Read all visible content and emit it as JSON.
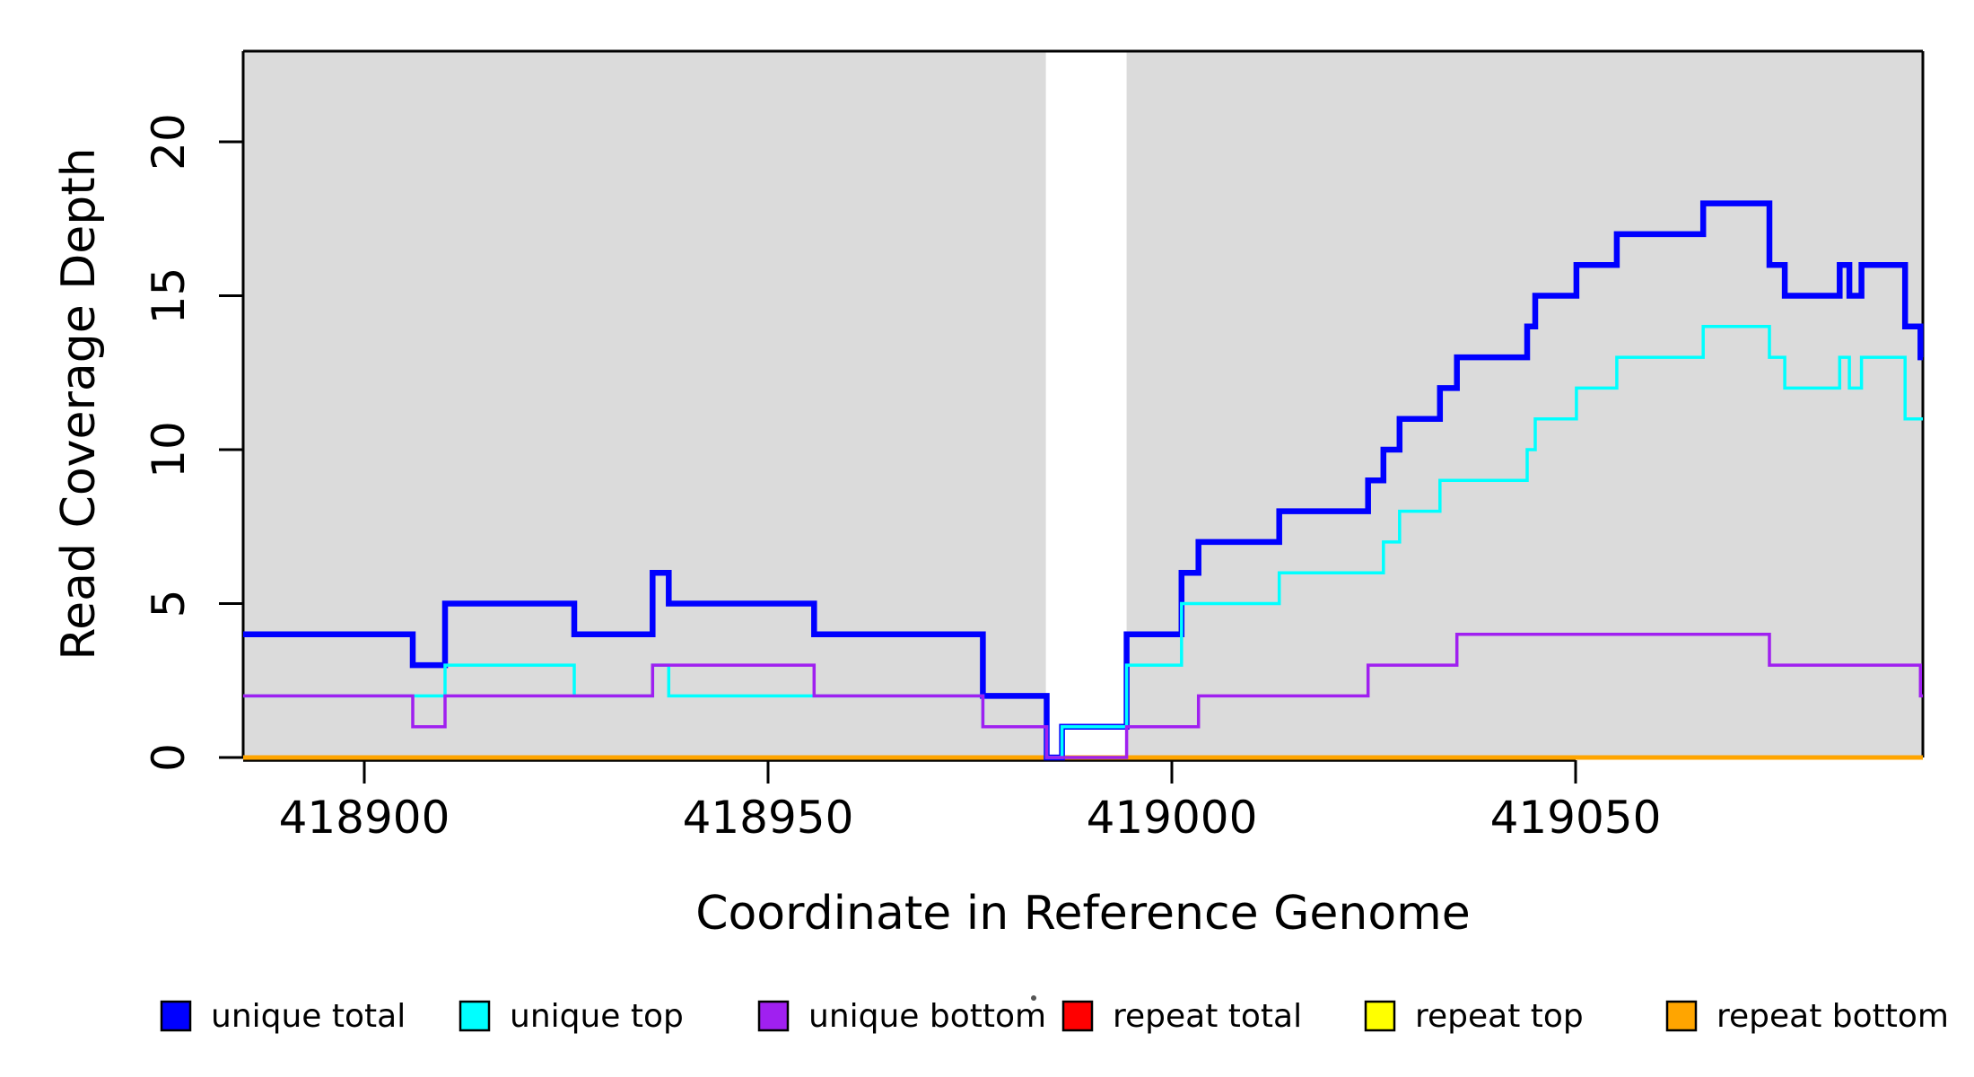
{
  "figure": {
    "background": "#ffffff",
    "plot_background_shaded": "#DBDBDB"
  },
  "chart_data": {
    "type": "line",
    "subtype": "step-coverage-plot",
    "title": "",
    "xlabel": "Coordinate in Reference Genome",
    "ylabel": "Read Coverage Depth",
    "xlim": [
      418885,
      419093
    ],
    "ylim": [
      0,
      22.9
    ],
    "grid": false,
    "x_ticks": [
      418900,
      418950,
      419000,
      419050
    ],
    "x_tick_labels": [
      "418900",
      "418950",
      "419000",
      "419050"
    ],
    "y_ticks": [
      0,
      5,
      10,
      15,
      20
    ],
    "y_tick_labels": [
      "0",
      "5",
      "10",
      "15",
      "20"
    ],
    "background_shading": {
      "color": "#DBDBDB",
      "regions": [
        [
          418885,
          418984.4
        ],
        [
          418994.4,
          419093
        ]
      ]
    },
    "unshaded_gap_region": [
      418984.4,
      418994.4
    ],
    "x_axis_line_span": [
      418885,
      419050
    ],
    "series": [
      {
        "name": "repeat total",
        "color": "#FF0000",
        "line_width": 4,
        "points": [
          [
            418885,
            0
          ]
        ]
      },
      {
        "name": "repeat top",
        "color": "#FFFF00",
        "line_width": 4,
        "points": [
          [
            418885,
            0
          ]
        ]
      },
      {
        "name": "repeat bottom",
        "color": "#FFA500",
        "line_width": 5,
        "points": [
          [
            418885,
            0
          ]
        ]
      },
      {
        "name": "unique total",
        "color": "#0000FF",
        "line_width": 6.5,
        "points": [
          [
            418885,
            4
          ],
          [
            418906,
            3
          ],
          [
            418910,
            5
          ],
          [
            418926,
            4
          ],
          [
            418935.7,
            6
          ],
          [
            418937.7,
            5
          ],
          [
            418955.7,
            4
          ],
          [
            418976.6,
            2
          ],
          [
            418984.5,
            0
          ],
          [
            418986.4,
            1
          ],
          [
            418994.4,
            4
          ],
          [
            419001.2,
            6
          ],
          [
            419003.3,
            7
          ],
          [
            419013.3,
            8
          ],
          [
            419024.3,
            9
          ],
          [
            419026.2,
            10
          ],
          [
            419028.2,
            11
          ],
          [
            419033.2,
            12
          ],
          [
            419035.3,
            13
          ],
          [
            419044,
            14
          ],
          [
            419045,
            15
          ],
          [
            419050.1,
            16
          ],
          [
            419055.1,
            17
          ],
          [
            419065.8,
            18
          ],
          [
            419074,
            16
          ],
          [
            419075.9,
            15
          ],
          [
            419082.7,
            16
          ],
          [
            419083.9,
            15
          ],
          [
            419085.4,
            16
          ],
          [
            419090.8,
            14
          ],
          [
            419092.7,
            13
          ]
        ]
      },
      {
        "name": "unique top",
        "color": "#00FFFF",
        "line_width": 3.5,
        "points": [
          [
            418885,
            2
          ],
          [
            418910,
            3
          ],
          [
            418926,
            2
          ],
          [
            418935.7,
            3
          ],
          [
            418937.7,
            2
          ],
          [
            418976.6,
            1
          ],
          [
            418984.5,
            0
          ],
          [
            418986.4,
            1
          ],
          [
            418994.4,
            3
          ],
          [
            419001.2,
            5
          ],
          [
            419013.3,
            6
          ],
          [
            419026.2,
            7
          ],
          [
            419028.2,
            8
          ],
          [
            419033.2,
            9
          ],
          [
            419044,
            10
          ],
          [
            419045,
            11
          ],
          [
            419050.1,
            12
          ],
          [
            419055.1,
            13
          ],
          [
            419065.8,
            14
          ],
          [
            419074,
            13
          ],
          [
            419075.9,
            12
          ],
          [
            419082.7,
            13
          ],
          [
            419083.9,
            12
          ],
          [
            419085.4,
            13
          ],
          [
            419090.8,
            11
          ]
        ]
      },
      {
        "name": "unique bottom",
        "color": "#A020F0",
        "line_width": 3.5,
        "points": [
          [
            418885,
            2
          ],
          [
            418906,
            1
          ],
          [
            418910,
            2
          ],
          [
            418935.7,
            3
          ],
          [
            418955.7,
            2
          ],
          [
            418976.6,
            1
          ],
          [
            418984.5,
            0
          ],
          [
            418994.4,
            1
          ],
          [
            419003.3,
            2
          ],
          [
            419024.3,
            3
          ],
          [
            419035.3,
            4
          ],
          [
            419074,
            3
          ],
          [
            419092.7,
            2
          ]
        ]
      }
    ],
    "legend": {
      "position": "bottom",
      "entries": [
        {
          "label": "unique total",
          "color": "#0000FF"
        },
        {
          "label": "unique top",
          "color": "#00FFFF"
        },
        {
          "label": "unique bottom",
          "color": "#A020F0"
        },
        {
          "label": "repeat total",
          "color": "#FF0000"
        },
        {
          "label": "repeat top",
          "color": "#FFFF00"
        },
        {
          "label": "repeat bottom",
          "color": "#FFA500"
        }
      ]
    }
  }
}
